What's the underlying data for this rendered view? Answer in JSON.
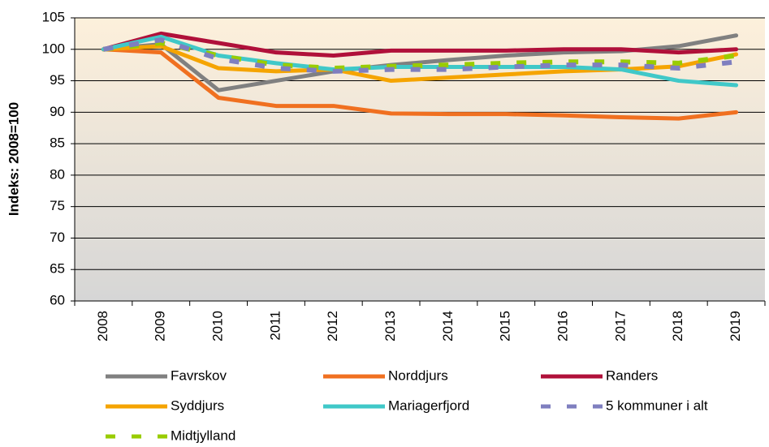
{
  "chart_data": {
    "type": "line",
    "y_label": "Indeks: 2008=100",
    "categories": [
      "2008",
      "2009",
      "2010",
      "2011",
      "2012",
      "2013",
      "2014",
      "2015",
      "2016",
      "2017",
      "2018",
      "2019"
    ],
    "ylim": [
      60,
      105
    ],
    "yticks": [
      60,
      65,
      70,
      75,
      80,
      85,
      90,
      95,
      100,
      105
    ],
    "grid": true,
    "series": [
      {
        "name": "Favrskov",
        "color": "#808080",
        "dashed": false,
        "values": [
          100,
          100.8,
          93.5,
          95,
          96.5,
          97.5,
          98.3,
          99,
          99.5,
          99.7,
          100.5,
          102.2
        ]
      },
      {
        "name": "Norddjurs",
        "color": "#f07020",
        "dashed": false,
        "values": [
          100,
          99.5,
          92.3,
          91,
          91,
          89.8,
          89.7,
          89.7,
          89.5,
          89.2,
          89,
          90
        ]
      },
      {
        "name": "Randers",
        "color": "#b0103a",
        "dashed": false,
        "values": [
          100,
          102.5,
          101,
          99.5,
          99,
          99.8,
          99.8,
          99.8,
          100,
          100,
          99.5,
          100
        ]
      },
      {
        "name": "Syddjurs",
        "color": "#f5a400",
        "dashed": false,
        "values": [
          100,
          100.5,
          97,
          96.5,
          96.8,
          95,
          95.5,
          96,
          96.5,
          96.8,
          97.3,
          99.2
        ]
      },
      {
        "name": "Mariagerfjord",
        "color": "#40c8c8",
        "dashed": false,
        "values": [
          100,
          102,
          99,
          97.8,
          96.8,
          97.2,
          97.2,
          97.2,
          97.2,
          96.8,
          95,
          94.3
        ]
      },
      {
        "name": "5 kommuner i alt",
        "color": "#7f7fbf",
        "dashed": true,
        "values": [
          100,
          101.5,
          98.5,
          97,
          96.5,
          96.8,
          96.8,
          97.2,
          97.5,
          97.5,
          97,
          98
        ]
      },
      {
        "name": "Midtjylland",
        "color": "#99cc00",
        "dashed": true,
        "values": [
          100,
          101,
          99,
          97.5,
          97,
          97.3,
          97.5,
          97.8,
          98,
          98,
          97.8,
          99
        ]
      }
    ]
  }
}
